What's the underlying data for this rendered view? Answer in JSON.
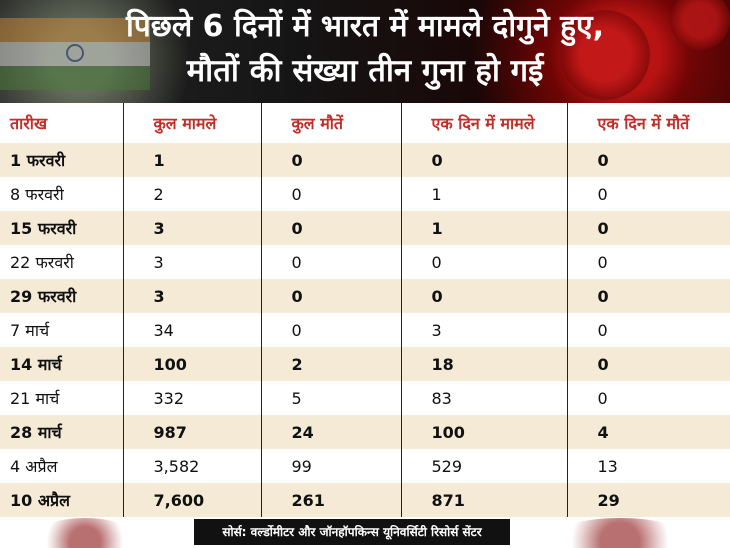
{
  "title": {
    "line1": "पिछले 6 दिनों में भारत में मामले दोगुने हुए,",
    "line2": "मौतों की संख्या तीन गुना हो गई"
  },
  "table": {
    "headers": [
      "तारीख",
      "कुल मामले",
      "कुल मौतें",
      "एक दिन में मामले",
      "एक दिन में मौतें"
    ],
    "rows": [
      [
        "1 फरवरी",
        "1",
        "0",
        "0",
        "0"
      ],
      [
        "8 फरवरी",
        "2",
        "0",
        "1",
        "0"
      ],
      [
        "15 फरवरी",
        "3",
        "0",
        "1",
        "0"
      ],
      [
        "22 फरवरी",
        "3",
        "0",
        "0",
        "0"
      ],
      [
        "29 फरवरी",
        "3",
        "0",
        "0",
        "0"
      ],
      [
        "7 मार्च",
        "34",
        "0",
        "3",
        "0"
      ],
      [
        "14 मार्च",
        "100",
        "2",
        "18",
        "0"
      ],
      [
        "21 मार्च",
        "332",
        "5",
        "83",
        "0"
      ],
      [
        "28 मार्च",
        "987",
        "24",
        "100",
        "4"
      ],
      [
        "4 अप्रैल",
        "3,582",
        "99",
        "529",
        "13"
      ],
      [
        "10 अप्रैल",
        "7,600",
        "261",
        "871",
        "29"
      ]
    ]
  },
  "source": "सोर्स: वर्ल्डोमीटर और जॉनहॉपकिन्स यूनिवर्सिटी रिसोर्स सेंटर",
  "colors": {
    "header_text": "#c0302a",
    "stripe": "#f5ead6"
  }
}
